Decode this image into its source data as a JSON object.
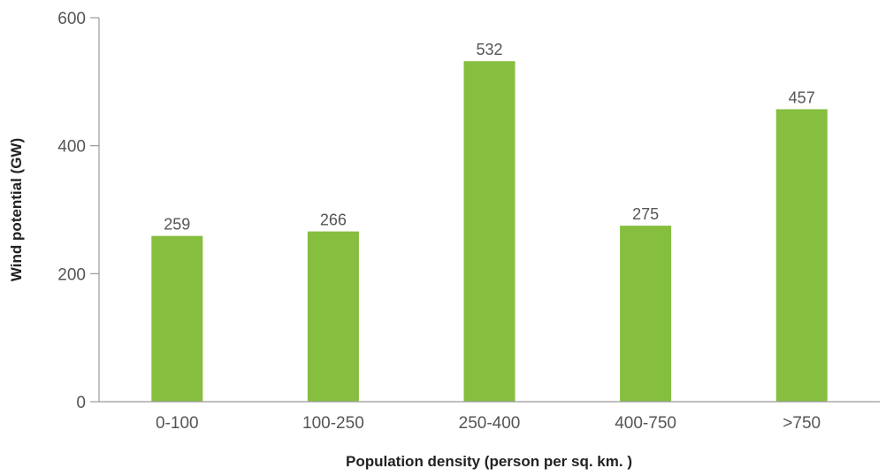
{
  "chart_data": {
    "type": "bar",
    "categories": [
      "0-100",
      "100-250",
      "250-400",
      "400-750",
      ">750"
    ],
    "values": [
      259,
      266,
      532,
      275,
      457
    ],
    "data_labels": [
      "259",
      "266",
      "532",
      "275",
      "457"
    ],
    "ylim": [
      0,
      600
    ],
    "yticks": [
      0,
      200,
      400,
      600
    ],
    "ytick_labels": [
      "0",
      "200",
      "400",
      "600"
    ],
    "xlabel": "Population density (person per sq. km. )",
    "ylabel": "Wind potential (GW)",
    "bar_color": "#86be3f",
    "grid": false,
    "legend": "none"
  }
}
